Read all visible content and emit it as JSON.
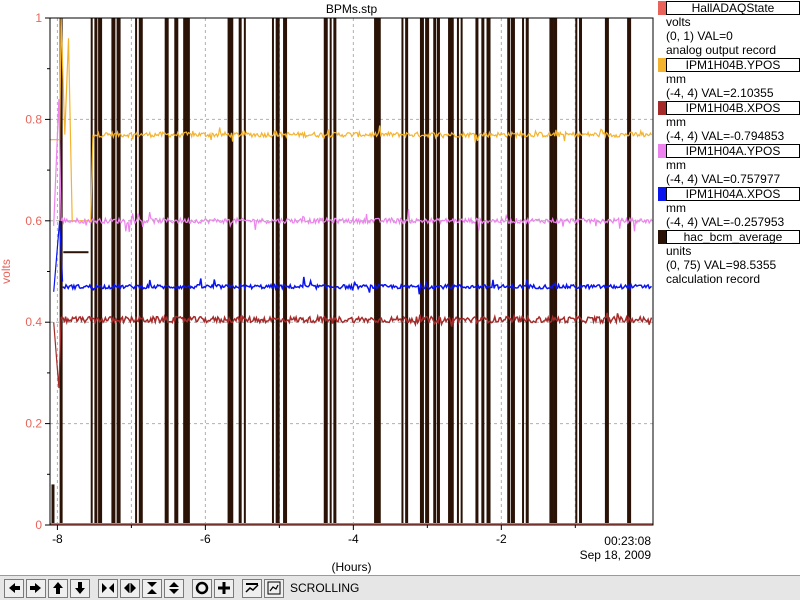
{
  "title": "BPMs.stp",
  "chart_data": {
    "type": "line",
    "title": "BPMs.stp",
    "xlabel": "(Hours)",
    "ylabel": "volts",
    "xlim": [
      -8.1,
      0.05
    ],
    "ylim": [
      0,
      1
    ],
    "x_ticks": [
      -8,
      -6,
      -4,
      -2
    ],
    "x_tick_labels": [
      "-8",
      "-6",
      "-4",
      "-2"
    ],
    "y_ticks": [
      0,
      0.2,
      0.4,
      0.6,
      0.8,
      1
    ],
    "y_tick_labels": [
      "0",
      "0.2",
      "0.4",
      "0.6",
      "0.8",
      "1"
    ],
    "grid": true,
    "time_label": "00:23:08",
    "date_label": "Sep 18, 2009",
    "series": [
      {
        "name": "HallADAQState",
        "color": "#e8645a",
        "level": 0.0
      },
      {
        "name": "IPM1H04B.YPOS",
        "color": "#f4b32e",
        "level": 0.77
      },
      {
        "name": "IPM1H04B.XPOS",
        "color": "#a52a2a",
        "level": 0.405
      },
      {
        "name": "IPM1H04A.YPOS",
        "color": "#ee82ee",
        "level": 0.6
      },
      {
        "name": "IPM1H04A.XPOS",
        "color": "#0a14ee",
        "level": 0.47
      },
      {
        "name": "hac_bcm_average",
        "color": "#2a1206"
      }
    ],
    "hac_bcm_spikes_hours": [
      -7.97,
      -7.55,
      -7.5,
      -7.45,
      -7.27,
      -7.2,
      -6.95,
      -6.9,
      -6.55,
      -6.42,
      -6.3,
      -6.25,
      -5.7,
      -5.65,
      -5.55,
      -5.48,
      -5.1,
      -5.05,
      -4.95,
      -4.4,
      -4.32,
      -4.27,
      -3.72,
      -3.67,
      -3.35,
      -3.3,
      -3.1,
      -3.03,
      -2.92,
      -2.87,
      -2.72,
      -2.67,
      -2.6,
      -2.55,
      -2.35,
      -2.27,
      -2.2,
      -1.92,
      -1.87,
      -1.72,
      -1.67,
      -1.35,
      -1.3,
      -1.0,
      -0.95,
      -0.6,
      -0.3
    ]
  },
  "legend": [
    {
      "name": "HallADAQState",
      "color": "#e8645a",
      "lines": [
        "volts",
        "(0, 1)  VAL=0",
        "analog output record"
      ]
    },
    {
      "name": "IPM1H04B.YPOS",
      "color": "#f4b32e",
      "lines": [
        "mm",
        "(-4, 4)  VAL=2.10355"
      ]
    },
    {
      "name": "IPM1H04B.XPOS",
      "color": "#a52a2a",
      "lines": [
        "mm",
        "(-4, 4)  VAL=-0.794853"
      ]
    },
    {
      "name": "IPM1H04A.YPOS",
      "color": "#ee82ee",
      "lines": [
        "mm",
        "(-4, 4)  VAL=0.757977"
      ]
    },
    {
      "name": "IPM1H04A.XPOS",
      "color": "#0a14ee",
      "lines": [
        "mm",
        "(-4, 4)  VAL=-0.257953"
      ]
    },
    {
      "name": "hac_bcm_average",
      "color": "#2a1206",
      "lines": [
        "units",
        "(0, 75)  VAL=98.5355",
        "calculation record"
      ]
    }
  ],
  "toolbar": {
    "buttons": [
      "pan-left",
      "pan-right",
      "pan-up",
      "pan-down",
      "zoom-in-x",
      "zoom-out-x",
      "zoom-in-y",
      "zoom-out-y",
      "auto-scale",
      "crosshair",
      "print",
      "zoom-box"
    ],
    "status": "SCROLLING"
  }
}
